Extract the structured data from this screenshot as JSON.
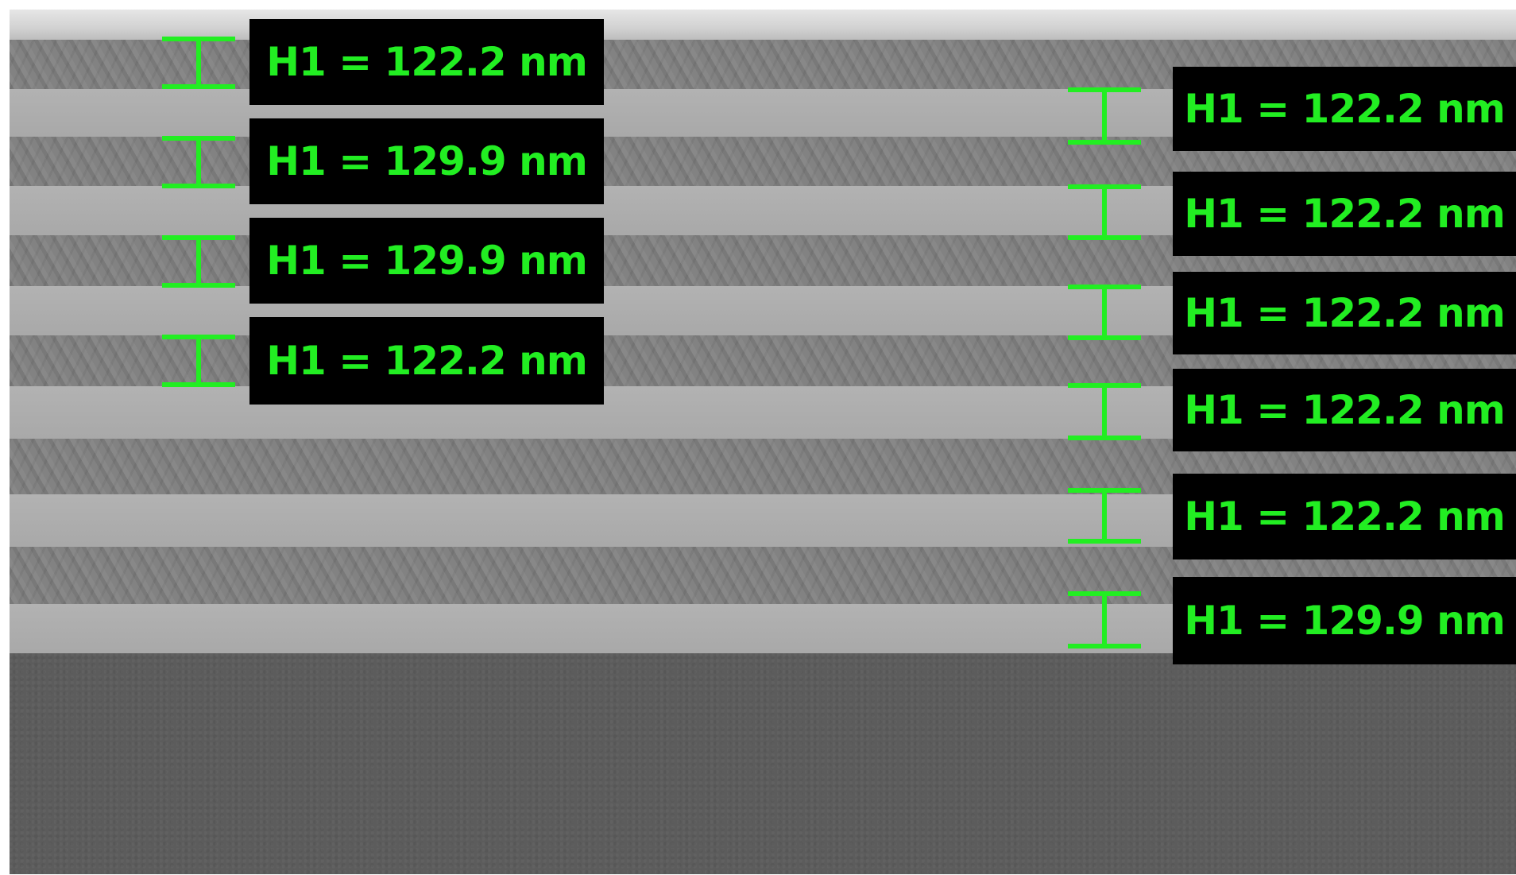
{
  "annotation_color": "#22ee22",
  "label_background": "#000000",
  "left_labels": [
    {
      "text": "H1 = 122.2 nm"
    },
    {
      "text": "H1 = 129.9 nm"
    },
    {
      "text": "H1 = 129.9 nm"
    },
    {
      "text": "H1 = 122.2 nm"
    }
  ],
  "right_labels": [
    {
      "text": "H1 = 122.2 nm"
    },
    {
      "text": "H1 = 122.2 nm"
    },
    {
      "text": "H1 = 122.2 nm"
    },
    {
      "text": "H1 = 122.2 nm"
    },
    {
      "text": "H1 = 122.2 nm"
    },
    {
      "text": "H1 = 129.9 nm"
    }
  ]
}
